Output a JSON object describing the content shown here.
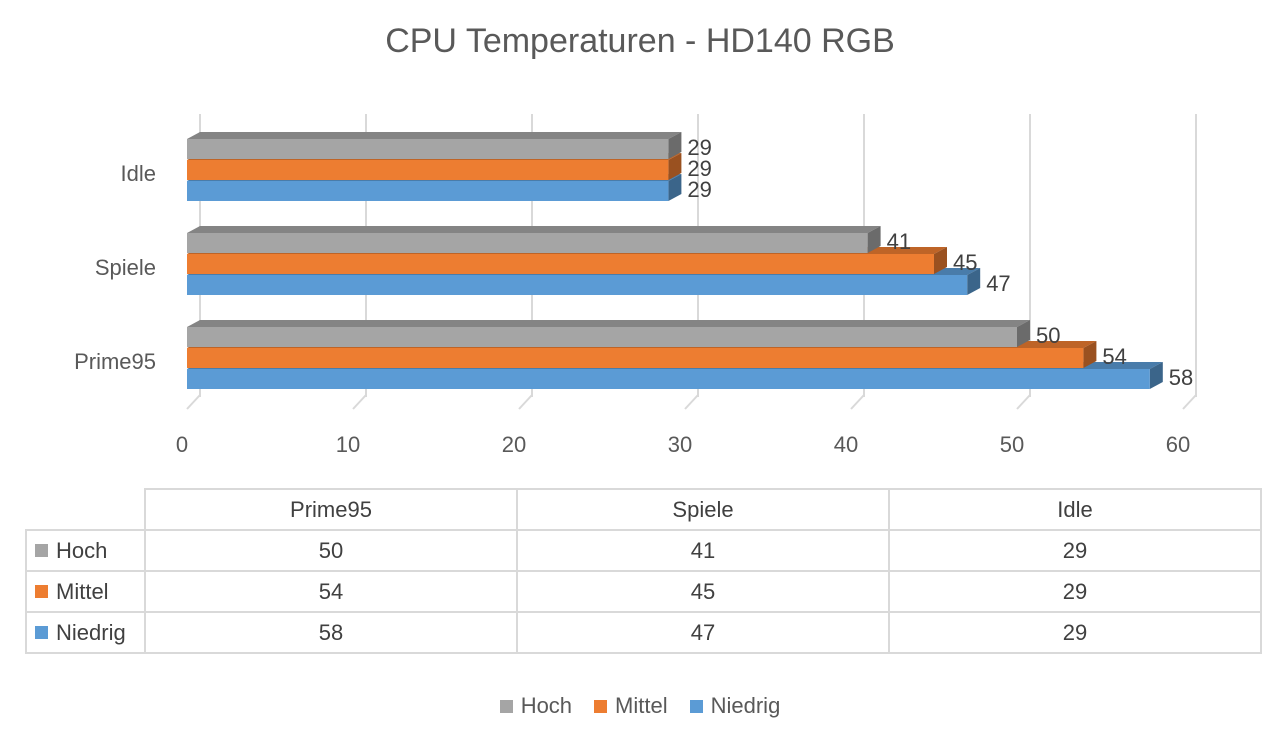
{
  "chart_data": {
    "type": "bar",
    "orientation": "horizontal",
    "style": "3d",
    "title": "CPU Temperaturen - HD140 RGB",
    "categories": [
      "Prime95",
      "Spiele",
      "Idle"
    ],
    "series": [
      {
        "name": "Hoch",
        "color": "#a5a5a5",
        "values": [
          50,
          41,
          29
        ]
      },
      {
        "name": "Mittel",
        "color": "#ed7d31",
        "values": [
          54,
          45,
          29
        ]
      },
      {
        "name": "Niedrig",
        "color": "#5b9bd5",
        "values": [
          58,
          47,
          29
        ]
      }
    ],
    "xlim": [
      0,
      60
    ],
    "xticks": [
      "0",
      "10",
      "20",
      "30",
      "40",
      "50",
      "60"
    ],
    "grid": true,
    "legend": "bottom",
    "data_table": true
  }
}
